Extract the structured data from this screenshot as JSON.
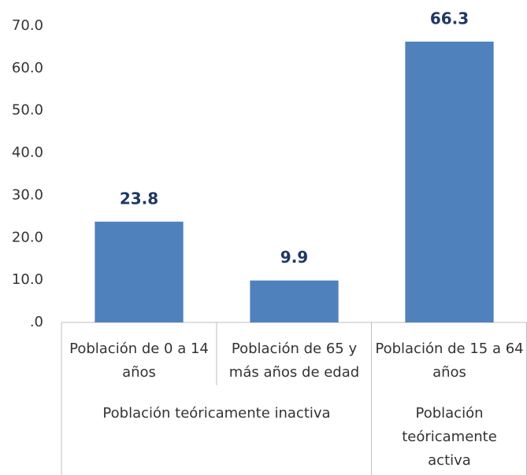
{
  "chart_data": {
    "type": "bar",
    "categories": [
      "Población de 0 a 14 años",
      "Población de 65 y más años de edad",
      "Población de 15 a 64 años"
    ],
    "category_groups": [
      "Población teóricamente inactiva",
      "Población teóricamente inactiva",
      "Población teóricamente activa"
    ],
    "values": [
      23.8,
      9.9,
      66.3
    ],
    "color": "#4f81bd",
    "ylim": [
      0,
      70
    ],
    "yticks": [
      {
        "value": 0,
        "label": ".0"
      },
      {
        "value": 10,
        "label": "10.0"
      },
      {
        "value": 20,
        "label": "20.0"
      },
      {
        "value": 30,
        "label": "30.0"
      },
      {
        "value": 40,
        "label": "40.0"
      },
      {
        "value": 50,
        "label": "50.0"
      },
      {
        "value": 60,
        "label": "60.0"
      },
      {
        "value": 70,
        "label": "70.0"
      }
    ],
    "grid": false
  }
}
